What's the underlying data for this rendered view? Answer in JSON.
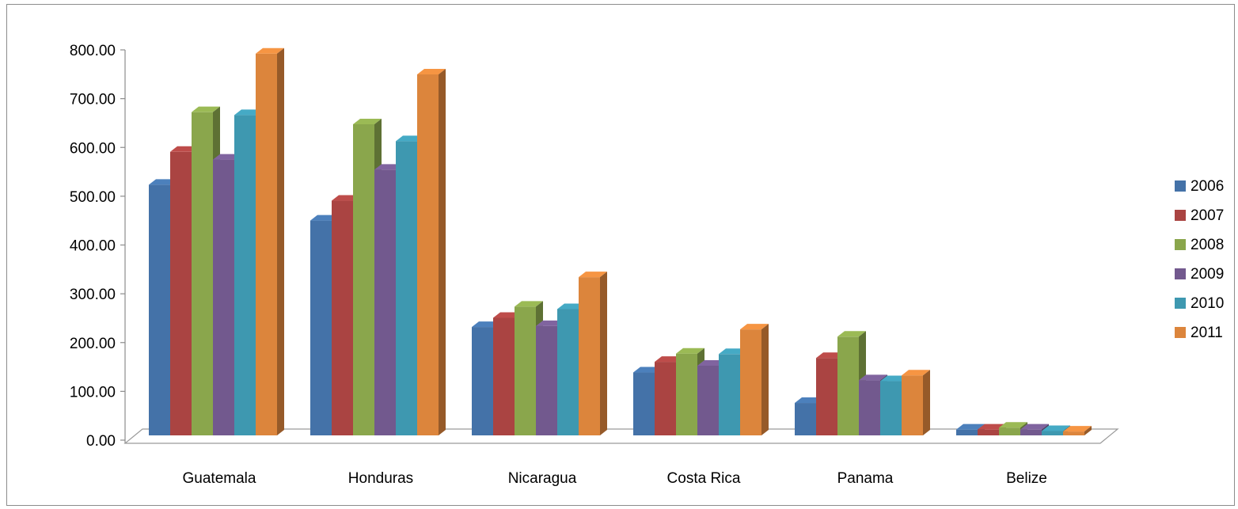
{
  "chart_data": {
    "type": "bar",
    "title": "",
    "xlabel": "",
    "ylabel": "",
    "ylim": [
      0,
      800
    ],
    "yticks": [
      "0.00",
      "100.00",
      "200.00",
      "300.00",
      "400.00",
      "500.00",
      "600.00",
      "700.00",
      "800.00"
    ],
    "categories": [
      "Guatemala",
      "Honduras",
      "Nicaragua",
      "Costa Rica",
      "Panama",
      "Belize"
    ],
    "legend_position": "right",
    "grid": false,
    "style": "3d-clustered-column",
    "series": [
      {
        "name": "2006",
        "color": "#4472a8",
        "values": [
          518,
          444,
          224,
          130,
          67,
          12
        ]
      },
      {
        "name": "2007",
        "color": "#aa4442",
        "values": [
          586,
          485,
          243,
          152,
          160,
          12
        ]
      },
      {
        "name": "2008",
        "color": "#8aa64c",
        "values": [
          668,
          643,
          266,
          169,
          204,
          16
        ]
      },
      {
        "name": "2009",
        "color": "#72598e",
        "values": [
          570,
          549,
          226,
          144,
          114,
          12
        ]
      },
      {
        "name": "2010",
        "color": "#3e98b0",
        "values": [
          662,
          608,
          261,
          168,
          112,
          9
        ]
      },
      {
        "name": "2011",
        "color": "#dc853c",
        "values": [
          789,
          746,
          327,
          219,
          124,
          8
        ]
      }
    ]
  }
}
